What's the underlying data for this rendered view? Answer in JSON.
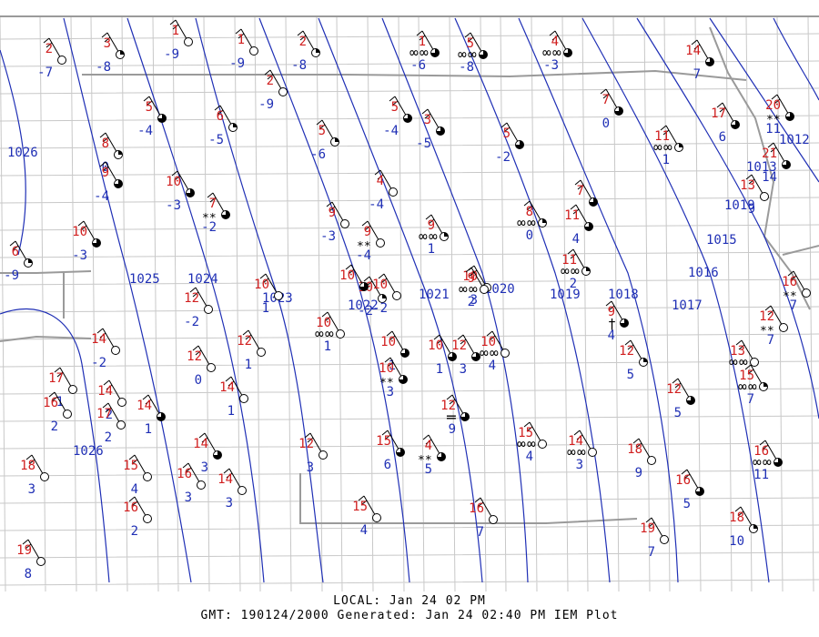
{
  "colors": {
    "temperature": "#d11f1f",
    "dewpoint": "#1f2fb5",
    "isobar": "#1f2fb5",
    "county_border": "#c8c8c8",
    "state_border": "#9a9a9a"
  },
  "isobar_labels": [
    "1026",
    "1025",
    "1024",
    "1023",
    "1022",
    "1021",
    "1020",
    "1019",
    "1018",
    "1017",
    "1016",
    "1015",
    "1013",
    "1012",
    "1026",
    "1019"
  ],
  "stations": [
    {
      "t": "2",
      "d": "-7",
      "sky": "clear",
      "wx": ""
    },
    {
      "t": "3",
      "d": "-8",
      "sky": "scattered",
      "wx": ""
    },
    {
      "t": "1",
      "d": "-9",
      "sky": "clear",
      "wx": ""
    },
    {
      "t": "1",
      "d": "-9",
      "sky": "clear",
      "wx": ""
    },
    {
      "t": "2",
      "d": "-8",
      "sky": "scattered",
      "wx": ""
    },
    {
      "t": "2",
      "d": "-9",
      "sky": "clear",
      "wx": ""
    },
    {
      "t": "1",
      "d": "-6",
      "sky": "broken",
      "wx": "haze"
    },
    {
      "t": "5",
      "d": "-8",
      "sky": "broken",
      "wx": "haze"
    },
    {
      "t": "4",
      "d": "-3",
      "sky": "broken",
      "wx": "haze"
    },
    {
      "t": "14",
      "d": "7",
      "sky": "broken",
      "wx": ""
    },
    {
      "t": "5",
      "d": "-4",
      "sky": "broken",
      "wx": ""
    },
    {
      "t": "6",
      "d": "-5",
      "sky": "scattered",
      "wx": ""
    },
    {
      "t": "5",
      "d": "-6",
      "sky": "scattered",
      "wx": ""
    },
    {
      "t": "5",
      "d": "-4",
      "sky": "broken",
      "wx": ""
    },
    {
      "t": "3",
      "d": "-5",
      "sky": "broken",
      "wx": ""
    },
    {
      "t": "5",
      "d": "-2",
      "sky": "broken",
      "wx": ""
    },
    {
      "t": "7",
      "d": "0",
      "sky": "broken",
      "wx": ""
    },
    {
      "t": "11",
      "d": "1",
      "sky": "scattered",
      "wx": "haze"
    },
    {
      "t": "17",
      "d": "6",
      "sky": "broken",
      "wx": ""
    },
    {
      "t": "20",
      "d": "11",
      "sky": "broken",
      "wx": "snow"
    },
    {
      "t": "8",
      "d": "0",
      "sky": "scattered",
      "wx": ""
    },
    {
      "t": "9",
      "d": "-4",
      "sky": "broken",
      "wx": ""
    },
    {
      "t": "10",
      "d": "-3",
      "sky": "broken",
      "wx": ""
    },
    {
      "t": "7",
      "d": "-2",
      "sky": "broken",
      "wx": "snow"
    },
    {
      "t": "4",
      "d": "-4",
      "sky": "clear",
      "wx": ""
    },
    {
      "t": "21",
      "d": "14",
      "sky": "broken",
      "wx": ""
    },
    {
      "t": "13",
      "d": "9",
      "sky": "clear",
      "wx": ""
    },
    {
      "t": "10",
      "d": "-3",
      "sky": "broken",
      "wx": ""
    },
    {
      "t": "6",
      "d": "-9",
      "sky": "scattered",
      "wx": ""
    },
    {
      "t": "9",
      "d": "-3",
      "sky": "clear",
      "wx": ""
    },
    {
      "t": "9",
      "d": "-4",
      "sky": "clear",
      "wx": "snow"
    },
    {
      "t": "9",
      "d": "1",
      "sky": "scattered",
      "wx": "haze"
    },
    {
      "t": "8",
      "d": "0",
      "sky": "scattered",
      "wx": "haze"
    },
    {
      "t": "7",
      "d": "",
      "sky": "broken",
      "wx": ""
    },
    {
      "t": "11",
      "d": "4",
      "sky": "broken",
      "wx": ""
    },
    {
      "t": "11",
      "d": "2",
      "sky": "scattered",
      "wx": "haze"
    },
    {
      "t": "10",
      "d": "3",
      "sky": "clear",
      "wx": ""
    },
    {
      "t": "16",
      "d": "7",
      "sky": "clear",
      "wx": "snow"
    },
    {
      "t": "12",
      "d": "-2",
      "sky": "clear",
      "wx": ""
    },
    {
      "t": "10",
      "d": "1",
      "sky": "clear",
      "wx": ""
    },
    {
      "t": "10",
      "d": "-2",
      "sky": "scattered",
      "wx": ""
    },
    {
      "t": "10",
      "d": "-2",
      "sky": "clear",
      "wx": ""
    },
    {
      "t": "9",
      "d": "2",
      "sky": "clear",
      "wx": "haze"
    },
    {
      "t": "10",
      "d": "1",
      "sky": "clear",
      "wx": "haze"
    },
    {
      "t": "9",
      "d": "4",
      "sky": "broken",
      "wx": "thunder"
    },
    {
      "t": "12",
      "d": "7",
      "sky": "clear",
      "wx": "snow"
    },
    {
      "t": "14",
      "d": "-2",
      "sky": "clear",
      "wx": ""
    },
    {
      "t": "12",
      "d": "0",
      "sky": "clear",
      "wx": ""
    },
    {
      "t": "12",
      "d": "1",
      "sky": "clear",
      "wx": ""
    },
    {
      "t": "10",
      "d": "",
      "sky": "broken",
      "wx": ""
    },
    {
      "t": "10",
      "d": "1",
      "sky": "broken",
      "wx": ""
    },
    {
      "t": "10",
      "d": "4",
      "sky": "clear",
      "wx": "haze"
    },
    {
      "t": "12",
      "d": "3",
      "sky": "broken",
      "wx": ""
    },
    {
      "t": "13",
      "d": "",
      "sky": "clear",
      "wx": "haze"
    },
    {
      "t": "17",
      "d": "1",
      "sky": "clear",
      "wx": ""
    },
    {
      "t": "16",
      "d": "2",
      "sky": "clear",
      "wx": ""
    },
    {
      "t": "14",
      "d": "2",
      "sky": "clear",
      "wx": ""
    },
    {
      "t": "17",
      "d": "2",
      "sky": "clear",
      "wx": ""
    },
    {
      "t": "14",
      "d": "1",
      "sky": "broken",
      "wx": ""
    },
    {
      "t": "14",
      "d": "1",
      "sky": "clear",
      "wx": ""
    },
    {
      "t": "10",
      "d": "3",
      "sky": "broken",
      "wx": "snow"
    },
    {
      "t": "12",
      "d": "9",
      "sky": "broken",
      "wx": "fog"
    },
    {
      "t": "12",
      "d": "5",
      "sky": "scattered",
      "wx": ""
    },
    {
      "t": "12",
      "d": "5",
      "sky": "broken",
      "wx": ""
    },
    {
      "t": "15",
      "d": "7",
      "sky": "scattered",
      "wx": "haze"
    },
    {
      "t": "14",
      "d": "3",
      "sky": "broken",
      "wx": ""
    },
    {
      "t": "12",
      "d": "3",
      "sky": "clear",
      "wx": ""
    },
    {
      "t": "15",
      "d": "6",
      "sky": "broken",
      "wx": ""
    },
    {
      "t": "4",
      "d": "5",
      "sky": "broken",
      "wx": "snow"
    },
    {
      "t": "15",
      "d": "4",
      "sky": "clear",
      "wx": "haze"
    },
    {
      "t": "14",
      "d": "3",
      "sky": "clear",
      "wx": "haze"
    },
    {
      "t": "18",
      "d": "9",
      "sky": "clear",
      "wx": ""
    },
    {
      "t": "16",
      "d": "11",
      "sky": "broken",
      "wx": "haze"
    },
    {
      "t": "18",
      "d": "3",
      "sky": "clear",
      "wx": ""
    },
    {
      "t": "15",
      "d": "4",
      "sky": "clear",
      "wx": ""
    },
    {
      "t": "16",
      "d": "3",
      "sky": "clear",
      "wx": ""
    },
    {
      "t": "14",
      "d": "3",
      "sky": "clear",
      "wx": ""
    },
    {
      "t": "16",
      "d": "2",
      "sky": "clear",
      "wx": ""
    },
    {
      "t": "16",
      "d": "5",
      "sky": "broken",
      "wx": ""
    },
    {
      "t": "15",
      "d": "4",
      "sky": "clear",
      "wx": ""
    },
    {
      "t": "16",
      "d": "7",
      "sky": "clear",
      "wx": ""
    },
    {
      "t": "19",
      "d": "7",
      "sky": "clear",
      "wx": ""
    },
    {
      "t": "18",
      "d": "10",
      "sky": "scattered",
      "wx": ""
    },
    {
      "t": "19",
      "d": "8",
      "sky": "clear",
      "wx": ""
    },
    {
      "t": "10",
      "d": "1",
      "sky": "broken",
      "wx": ""
    }
  ],
  "footer": {
    "local": "LOCAL: Jan 24 02 PM",
    "gmt": "GMT: 190124/2000 Generated: Jan 24 02:40 PM IEM Plot"
  }
}
